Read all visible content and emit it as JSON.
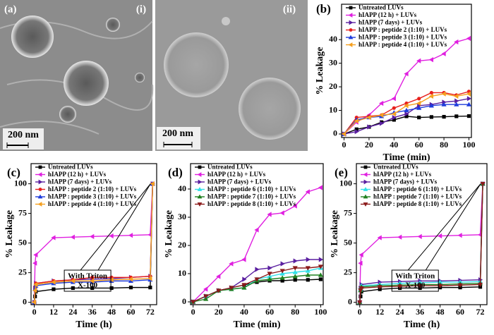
{
  "images": [
    {
      "panel_label": "(a)",
      "label": "(i)",
      "scale_bar": "200 nm"
    },
    {
      "label": "(ii)",
      "scale_bar": "200 nm"
    }
  ],
  "chart_data": [
    {
      "type": "line",
      "panel_label": "(b)",
      "xlabel": "Time (min)",
      "ylabel": "% Leakage",
      "x": [
        0,
        10,
        20,
        30,
        40,
        50,
        60,
        70,
        80,
        90,
        100
      ],
      "xlim": [
        -2,
        102
      ],
      "xticks": [
        0,
        20,
        40,
        60,
        80,
        100
      ],
      "ylim": [
        -1.5,
        55
      ],
      "yticks": [
        0,
        10,
        20,
        30,
        40
      ],
      "legend": "upper left",
      "series": [
        {
          "name": "Untreated LUVs",
          "color": "#000000",
          "marker": "square",
          "values": [
            0,
            2,
            3,
            5,
            6,
            7.5,
            7,
            7.2,
            7.3,
            7.5,
            7.6
          ]
        },
        {
          "name": "hIAPP (12 h) + LUVs",
          "color": "#e020e0",
          "marker": "tri-left",
          "values": [
            0,
            5,
            8,
            13,
            15,
            25.5,
            31,
            31.5,
            34,
            39,
            40.5
          ]
        },
        {
          "name": "hIAPP (7 days) + LUVs",
          "color": "#5a1fa0",
          "marker": "tri-right",
          "values": [
            0,
            1,
            3,
            4.5,
            7,
            8.5,
            12,
            12.5,
            13.5,
            14,
            15
          ]
        },
        {
          "name": "hIAPP : peptide 2 (1:10) + LUVs",
          "color": "#e8201c",
          "marker": "circle",
          "values": [
            0,
            7,
            7.5,
            8,
            11,
            13,
            15,
            17.5,
            17.5,
            16.5,
            18
          ]
        },
        {
          "name": "hIAPP : peptide 3 (1:10) + LUVs",
          "color": "#1e3cdc",
          "marker": "tri-up",
          "values": [
            0,
            6,
            7,
            7.5,
            9,
            10,
            11,
            12,
            12.5,
            12.5,
            12.5
          ]
        },
        {
          "name": "hIAPP : peptide 4 (1:10) + LUVs",
          "color": "#f5a020",
          "marker": "tri-left",
          "values": [
            0,
            5.5,
            7,
            8,
            8.5,
            12,
            13,
            16,
            17,
            16,
            17
          ]
        }
      ]
    },
    {
      "type": "line",
      "panel_label": "(c)",
      "xlabel": "Time (h)",
      "ylabel": "% Leakage",
      "x": [
        0,
        0.5,
        1,
        12,
        24,
        36,
        48,
        60,
        72,
        73.5
      ],
      "xlim": [
        -2,
        76
      ],
      "xticks": [
        0,
        12,
        24,
        36,
        48,
        60,
        72
      ],
      "ylim": [
        -2,
        117
      ],
      "yticks": [
        0,
        25,
        50,
        75,
        100
      ],
      "legend": "upper left",
      "annotation": [
        "With Triton",
        "X-100"
      ],
      "series": [
        {
          "name": "Untreated LUVs",
          "color": "#000000",
          "marker": "square",
          "values": [
            0,
            5,
            9,
            11,
            12,
            12,
            12,
            12.5,
            12.5,
            100
          ]
        },
        {
          "name": "hIAPP (12 h) + LUVs",
          "color": "#e020e0",
          "marker": "tri-left",
          "values": [
            0,
            33,
            40,
            54.5,
            55,
            55.5,
            56,
            56.5,
            57,
            100
          ]
        },
        {
          "name": "hIAPP (7 days) + LUVs",
          "color": "#5a1fa0",
          "marker": "tri-right",
          "values": [
            0,
            12,
            16,
            18,
            19,
            19.5,
            20,
            21,
            22,
            100
          ]
        },
        {
          "name": "hIAPP : peptide 2 (1:10) + LUVs",
          "color": "#e8201c",
          "marker": "circle",
          "values": [
            0,
            13,
            16,
            18,
            19,
            21,
            21,
            21,
            22,
            100
          ]
        },
        {
          "name": "hIAPP : peptide 3 (1:10) + LUVs",
          "color": "#1e3cdc",
          "marker": "tri-up",
          "values": [
            0,
            11,
            14,
            16,
            17,
            17,
            18,
            18,
            19,
            100
          ]
        },
        {
          "name": "hIAPP : peptide 4 (1:10) + LUVs",
          "color": "#f5a020",
          "marker": "tri-left",
          "values": [
            0,
            10,
            15,
            17,
            18,
            18,
            19,
            19.5,
            20,
            100
          ]
        }
      ]
    },
    {
      "type": "line",
      "panel_label": "(d)",
      "xlabel": "Time (min)",
      "ylabel": "% Leakage",
      "x": [
        0,
        10,
        20,
        30,
        40,
        50,
        60,
        70,
        80,
        90,
        100
      ],
      "xlim": [
        -2,
        102
      ],
      "xticks": [
        0,
        20,
        40,
        60,
        80,
        100
      ],
      "ylim": [
        -1,
        49
      ],
      "yticks": [
        0,
        10,
        20,
        30,
        40
      ],
      "legend": "upper left",
      "series": [
        {
          "name": "Untreated LUVs",
          "color": "#000000",
          "marker": "square",
          "values": [
            0,
            2,
            4,
            5,
            6,
            7,
            7.5,
            7.5,
            7.8,
            7.8,
            8
          ]
        },
        {
          "name": "hIAPP (12 h) + LUVs",
          "color": "#e020e0",
          "marker": "tri-left",
          "values": [
            0,
            4.5,
            9,
            13.5,
            15,
            25.5,
            31,
            31.5,
            34,
            39,
            40.5
          ]
        },
        {
          "name": "hIAPP (7 days) + LUVs",
          "color": "#5a1fa0",
          "marker": "tri-right",
          "values": [
            0,
            2,
            4,
            5,
            8,
            11.5,
            12,
            13.5,
            14.5,
            15,
            15
          ]
        },
        {
          "name": "hIAPP : peptide 6 (1:10) + LUVs",
          "color": "#30e0e8",
          "marker": "tri-up",
          "values": [
            0,
            2,
            4,
            4.5,
            5,
            8,
            9,
            10,
            10.5,
            11,
            12
          ]
        },
        {
          "name": "hIAPP : peptide 7 (1:10) + LUVs",
          "color": "#208020",
          "marker": "tri-up",
          "values": [
            0,
            1,
            4,
            4.5,
            5,
            7.5,
            8,
            8.5,
            9,
            9.5,
            9.5
          ]
        },
        {
          "name": "hIAPP : peptide 8 (1:10) + LUVs",
          "color": "#8b1a1a",
          "marker": "tri-down",
          "values": [
            0,
            2,
            4,
            5,
            6,
            8,
            10,
            11,
            12,
            12,
            12.5
          ]
        }
      ]
    },
    {
      "type": "line",
      "panel_label": "(e)",
      "xlabel": "Time (h)",
      "ylabel": "% Leakage",
      "x": [
        0,
        0.5,
        1,
        12,
        24,
        36,
        48,
        60,
        72,
        73.5
      ],
      "xlim": [
        -2,
        76
      ],
      "xticks": [
        0,
        12,
        24,
        36,
        48,
        60,
        72
      ],
      "ylim": [
        -2,
        117
      ],
      "yticks": [
        0,
        25,
        50,
        75,
        100
      ],
      "legend": "upper left",
      "annotation": [
        "With Triton",
        "X-100"
      ],
      "series": [
        {
          "name": "Untreated LUVs",
          "color": "#000000",
          "marker": "square",
          "values": [
            0,
            5,
            9,
            11,
            12,
            12,
            12.5,
            12.5,
            13,
            100
          ]
        },
        {
          "name": "hIAPP (12 h) + LUVs",
          "color": "#e020e0",
          "marker": "tri-left",
          "values": [
            0,
            33,
            40,
            54.5,
            55,
            55.5,
            56,
            56.5,
            57,
            100
          ]
        },
        {
          "name": "hIAPP (7 days) + LUVs",
          "color": "#5a1fa0",
          "marker": "tri-right",
          "values": [
            0,
            12,
            15,
            17,
            17.5,
            18,
            18,
            18.5,
            19,
            100
          ]
        },
        {
          "name": "hIAPP : peptide 6 (1:10) + LUVs",
          "color": "#30e0e8",
          "marker": "tri-up",
          "values": [
            0,
            11,
            14,
            15,
            16,
            16.5,
            17,
            17,
            17.5,
            100
          ]
        },
        {
          "name": "hIAPP : peptide 7 (1:10) + LUVs",
          "color": "#208020",
          "marker": "tri-up",
          "values": [
            0,
            10,
            13,
            14,
            14.5,
            15,
            15,
            15.5,
            16,
            100
          ]
        },
        {
          "name": "hIAPP : peptide 8 (1:10) + LUVs",
          "color": "#8b1a1a",
          "marker": "tri-down",
          "values": [
            0,
            10,
            12,
            13,
            13.5,
            14,
            14,
            14.5,
            15,
            100
          ]
        }
      ]
    }
  ]
}
